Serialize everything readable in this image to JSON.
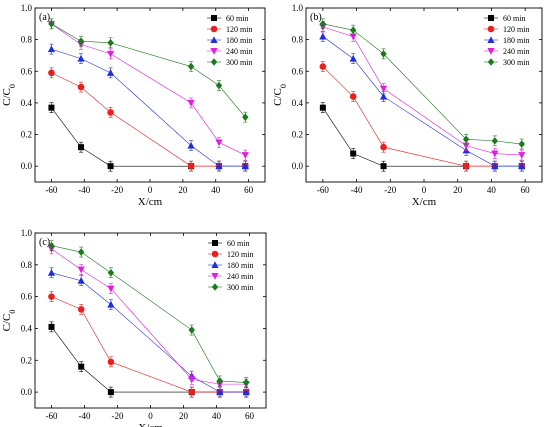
{
  "series_style": [
    {
      "color": "#000000",
      "marker": "square"
    },
    {
      "color": "#e8211f",
      "marker": "circle"
    },
    {
      "color": "#1f2fe0",
      "marker": "triangle-up"
    },
    {
      "color": "#e01fe0",
      "marker": "triangle-down"
    },
    {
      "color": "#1b7a1b",
      "marker": "diamond"
    }
  ],
  "chart_data": [
    {
      "type": "line",
      "panel_label": "(a)",
      "xlabel": "X/cm",
      "ylabel": "C/C0",
      "xlim": [
        -70,
        70
      ],
      "ylim": [
        -0.1,
        1.0
      ],
      "xticks": [
        -60,
        -40,
        -20,
        0,
        20,
        40,
        60
      ],
      "yticks": [
        0.0,
        0.2,
        0.4,
        0.6,
        0.8,
        1.0
      ],
      "legend_position": "top-right",
      "x": [
        -60,
        -42,
        -24,
        25,
        42,
        58
      ],
      "series": [
        {
          "name": "60 min",
          "values": [
            0.37,
            0.12,
            0.0,
            0.0,
            0.0,
            0.0
          ]
        },
        {
          "name": "120 min",
          "values": [
            0.59,
            0.5,
            0.34,
            0.0,
            0.0,
            0.0
          ]
        },
        {
          "name": "180 min",
          "values": [
            0.74,
            0.68,
            0.59,
            0.13,
            0.0,
            0.0
          ]
        },
        {
          "name": "240 min",
          "values": [
            0.9,
            0.77,
            0.71,
            0.4,
            0.15,
            0.07
          ]
        },
        {
          "name": "300 min",
          "values": [
            0.9,
            0.79,
            0.78,
            0.63,
            0.51,
            0.31
          ]
        }
      ]
    },
    {
      "type": "line",
      "panel_label": "(b)",
      "xlabel": "X/cm",
      "ylabel": "C/C0",
      "xlim": [
        -70,
        70
      ],
      "ylim": [
        -0.1,
        1.0
      ],
      "xticks": [
        -60,
        -40,
        -20,
        0,
        20,
        40,
        60
      ],
      "yticks": [
        0.0,
        0.2,
        0.4,
        0.6,
        0.8,
        1.0
      ],
      "legend_position": "top-right",
      "x": [
        -60,
        -42,
        -24,
        25,
        42,
        58
      ],
      "series": [
        {
          "name": "60 min",
          "values": [
            0.37,
            0.08,
            0.0,
            0.0,
            0.0,
            0.0
          ]
        },
        {
          "name": "120 min",
          "values": [
            0.63,
            0.44,
            0.12,
            0.0,
            0.0,
            0.0
          ]
        },
        {
          "name": "180 min",
          "values": [
            0.82,
            0.68,
            0.44,
            0.1,
            0.0,
            0.0
          ]
        },
        {
          "name": "240 min",
          "values": [
            0.88,
            0.82,
            0.49,
            0.13,
            0.08,
            0.07
          ]
        },
        {
          "name": "300 min",
          "values": [
            0.9,
            0.86,
            0.71,
            0.17,
            0.16,
            0.14
          ]
        }
      ]
    },
    {
      "type": "line",
      "panel_label": "(c)",
      "xlabel": "X/cm",
      "ylabel": "C/C0",
      "xlim": [
        -70,
        70
      ],
      "ylim": [
        -0.1,
        1.0
      ],
      "xticks": [
        -60,
        -40,
        -20,
        0,
        20,
        40,
        60
      ],
      "yticks": [
        0.0,
        0.2,
        0.4,
        0.6,
        0.8,
        1.0
      ],
      "legend_position": "top-right",
      "x": [
        -60,
        -42,
        -24,
        25,
        42,
        58
      ],
      "series": [
        {
          "name": "60 min",
          "values": [
            0.41,
            0.16,
            0.0,
            0.0,
            0.0,
            0.0
          ]
        },
        {
          "name": "120 min",
          "values": [
            0.6,
            0.52,
            0.19,
            0.0,
            0.0,
            0.0
          ]
        },
        {
          "name": "180 min",
          "values": [
            0.75,
            0.7,
            0.55,
            0.1,
            0.0,
            0.0
          ]
        },
        {
          "name": "240 min",
          "values": [
            0.9,
            0.77,
            0.65,
            0.08,
            0.05,
            0.05
          ]
        },
        {
          "name": "300 min",
          "values": [
            0.92,
            0.88,
            0.75,
            0.39,
            0.07,
            0.06
          ]
        }
      ]
    }
  ]
}
